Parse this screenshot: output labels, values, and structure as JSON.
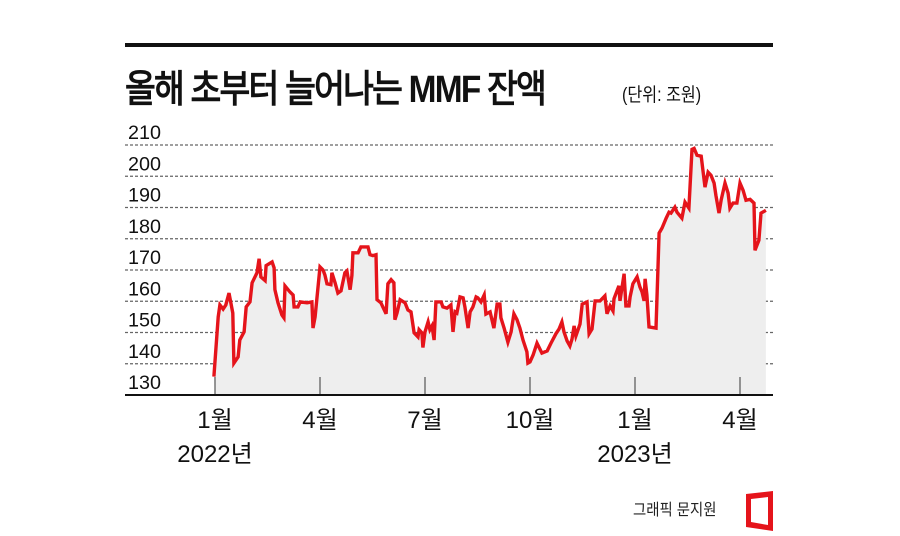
{
  "header": {
    "title": "올해 초부터 늘어나는 MMF 잔액",
    "unit": "(단위: 조원)"
  },
  "footer": {
    "credit": "그래픽 문지원"
  },
  "colors": {
    "line": "#e5141b",
    "area": "#eeeeee",
    "axis": "#111111",
    "grid": "#666666",
    "logo": "#e5141b"
  },
  "chart_data": {
    "type": "area",
    "title": "올해 초부터 늘어나는 MMF 잔액",
    "subtitle": "(단위: 조원)",
    "xlabel": "",
    "ylabel": "조원",
    "ylim": [
      130,
      210
    ],
    "yticks": [
      130,
      140,
      150,
      160,
      170,
      180,
      190,
      200,
      210
    ],
    "grid": true,
    "legend": "none",
    "xticks": [
      {
        "month": 0,
        "label": "1월",
        "sublabel": "2022년"
      },
      {
        "month": 3,
        "label": "4월",
        "sublabel": ""
      },
      {
        "month": 6,
        "label": "7월",
        "sublabel": ""
      },
      {
        "month": 9,
        "label": "10월",
        "sublabel": ""
      },
      {
        "month": 12,
        "label": "1월",
        "sublabel": "2023년"
      },
      {
        "month": 15,
        "label": "4월",
        "sublabel": ""
      }
    ],
    "series": [
      {
        "name": "MMF 잔액",
        "points": [
          [
            -0.03,
            135.9
          ],
          [
            0.09,
            155.0
          ],
          [
            0.14,
            158.8
          ],
          [
            0.23,
            157.5
          ],
          [
            0.31,
            158.8
          ],
          [
            0.4,
            162.6
          ],
          [
            0.51,
            156.2
          ],
          [
            0.54,
            140.2
          ],
          [
            0.66,
            142.2
          ],
          [
            0.71,
            147.6
          ],
          [
            0.83,
            150.2
          ],
          [
            0.89,
            158.2
          ],
          [
            1.0,
            159.8
          ],
          [
            1.06,
            165.9
          ],
          [
            1.2,
            169.1
          ],
          [
            1.26,
            173.6
          ],
          [
            1.31,
            167.8
          ],
          [
            1.43,
            166.6
          ],
          [
            1.46,
            171.4
          ],
          [
            1.63,
            172.6
          ],
          [
            1.69,
            170.7
          ],
          [
            1.71,
            163.7
          ],
          [
            1.8,
            159.5
          ],
          [
            1.91,
            155.6
          ],
          [
            1.97,
            154.7
          ],
          [
            2.0,
            164.9
          ],
          [
            2.14,
            163.0
          ],
          [
            2.23,
            162.0
          ],
          [
            2.26,
            158.2
          ],
          [
            2.37,
            158.2
          ],
          [
            2.43,
            159.8
          ],
          [
            2.63,
            159.5
          ],
          [
            2.77,
            159.8
          ],
          [
            2.8,
            151.4
          ],
          [
            2.86,
            155.0
          ],
          [
            3.0,
            171.0
          ],
          [
            3.09,
            170.0
          ],
          [
            3.14,
            168.4
          ],
          [
            3.2,
            165.6
          ],
          [
            3.31,
            165.3
          ],
          [
            3.34,
            169.1
          ],
          [
            3.43,
            165.9
          ],
          [
            3.51,
            162.6
          ],
          [
            3.6,
            163.3
          ],
          [
            3.71,
            169.1
          ],
          [
            3.77,
            169.7
          ],
          [
            3.86,
            163.7
          ],
          [
            3.91,
            168.2
          ],
          [
            3.94,
            175.5
          ],
          [
            4.09,
            175.5
          ],
          [
            4.17,
            177.4
          ],
          [
            4.37,
            177.4
          ],
          [
            4.43,
            174.9
          ],
          [
            4.51,
            174.6
          ],
          [
            4.6,
            174.9
          ],
          [
            4.63,
            160.5
          ],
          [
            4.74,
            159.5
          ],
          [
            4.89,
            156.0
          ],
          [
            4.94,
            165.6
          ],
          [
            5.03,
            166.9
          ],
          [
            5.11,
            165.9
          ],
          [
            5.14,
            154.1
          ],
          [
            5.2,
            156.2
          ],
          [
            5.29,
            160.5
          ],
          [
            5.43,
            159.5
          ],
          [
            5.51,
            157.2
          ],
          [
            5.6,
            156.6
          ],
          [
            5.69,
            149.9
          ],
          [
            5.8,
            148.6
          ],
          [
            5.83,
            150.9
          ],
          [
            5.91,
            149.9
          ],
          [
            5.94,
            145.2
          ],
          [
            6.0,
            150.2
          ],
          [
            6.09,
            153.4
          ],
          [
            6.14,
            150.9
          ],
          [
            6.2,
            152.1
          ],
          [
            6.26,
            147.6
          ],
          [
            6.31,
            159.8
          ],
          [
            6.46,
            159.8
          ],
          [
            6.51,
            158.2
          ],
          [
            6.63,
            157.8
          ],
          [
            6.74,
            158.8
          ],
          [
            6.8,
            150.2
          ],
          [
            6.86,
            156.6
          ],
          [
            6.91,
            156.2
          ],
          [
            7.0,
            161.4
          ],
          [
            7.09,
            161.1
          ],
          [
            7.14,
            158.2
          ],
          [
            7.23,
            151.4
          ],
          [
            7.29,
            156.6
          ],
          [
            7.37,
            158.2
          ],
          [
            7.46,
            161.4
          ],
          [
            7.51,
            161.1
          ],
          [
            7.6,
            159.8
          ],
          [
            7.69,
            162.0
          ],
          [
            7.74,
            155.9
          ],
          [
            7.86,
            156.6
          ],
          [
            7.97,
            151.4
          ],
          [
            8.06,
            159.1
          ],
          [
            8.14,
            159.1
          ],
          [
            8.17,
            154.7
          ],
          [
            8.26,
            151.4
          ],
          [
            8.37,
            146.9
          ],
          [
            8.46,
            150.2
          ],
          [
            8.54,
            156.0
          ],
          [
            8.63,
            154.1
          ],
          [
            8.71,
            151.4
          ],
          [
            8.8,
            147.6
          ],
          [
            8.91,
            143.8
          ],
          [
            8.94,
            140.2
          ],
          [
            9.0,
            140.6
          ],
          [
            9.09,
            142.8
          ],
          [
            9.2,
            146.6
          ],
          [
            9.34,
            143.4
          ],
          [
            9.49,
            144.1
          ],
          [
            9.6,
            146.6
          ],
          [
            9.74,
            149.6
          ],
          [
            9.83,
            151.1
          ],
          [
            9.91,
            153.4
          ],
          [
            9.97,
            150.2
          ],
          [
            10.06,
            147.3
          ],
          [
            10.14,
            145.7
          ],
          [
            10.2,
            147.9
          ],
          [
            10.26,
            152.1
          ],
          [
            10.31,
            148.9
          ],
          [
            10.43,
            152.7
          ],
          [
            10.49,
            159.1
          ],
          [
            10.63,
            159.8
          ],
          [
            10.69,
            149.6
          ],
          [
            10.77,
            151.1
          ],
          [
            10.83,
            156.9
          ],
          [
            10.86,
            160.1
          ],
          [
            11.0,
            160.1
          ],
          [
            11.14,
            161.7
          ],
          [
            11.2,
            156.0
          ],
          [
            11.29,
            158.5
          ],
          [
            11.37,
            156.9
          ],
          [
            11.4,
            160.8
          ],
          [
            11.54,
            164.9
          ],
          [
            11.57,
            160.1
          ],
          [
            11.69,
            168.8
          ],
          [
            11.74,
            158.5
          ],
          [
            11.83,
            158.5
          ],
          [
            11.86,
            161.4
          ],
          [
            11.94,
            165.6
          ],
          [
            12.06,
            167.8
          ],
          [
            12.14,
            164.6
          ],
          [
            12.2,
            163.0
          ],
          [
            12.26,
            160.1
          ],
          [
            12.29,
            167.2
          ],
          [
            12.34,
            162.0
          ],
          [
            12.4,
            151.8
          ],
          [
            12.6,
            151.4
          ],
          [
            12.69,
            181.8
          ],
          [
            12.77,
            183.4
          ],
          [
            12.89,
            186.6
          ],
          [
            12.97,
            188.5
          ],
          [
            13.03,
            188.2
          ],
          [
            13.14,
            190.1
          ],
          [
            13.2,
            188.5
          ],
          [
            13.34,
            186.6
          ],
          [
            13.43,
            191.7
          ],
          [
            13.54,
            189.8
          ],
          [
            13.63,
            208.6
          ],
          [
            13.69,
            208.9
          ],
          [
            13.77,
            206.7
          ],
          [
            13.89,
            206.4
          ],
          [
            14.0,
            196.5
          ],
          [
            14.09,
            201.3
          ],
          [
            14.17,
            200.3
          ],
          [
            14.26,
            197.8
          ],
          [
            14.31,
            193.9
          ],
          [
            14.4,
            188.2
          ],
          [
            14.46,
            192.3
          ],
          [
            14.57,
            197.8
          ],
          [
            14.66,
            194.6
          ],
          [
            14.71,
            189.8
          ],
          [
            14.8,
            191.4
          ],
          [
            14.91,
            191.4
          ],
          [
            15.0,
            197.8
          ],
          [
            15.09,
            195.5
          ],
          [
            15.17,
            192.3
          ],
          [
            15.29,
            192.6
          ],
          [
            15.4,
            191.4
          ],
          [
            15.43,
            176.3
          ],
          [
            15.54,
            179.5
          ],
          [
            15.6,
            188.2
          ],
          [
            15.74,
            189.1
          ]
        ]
      }
    ]
  }
}
